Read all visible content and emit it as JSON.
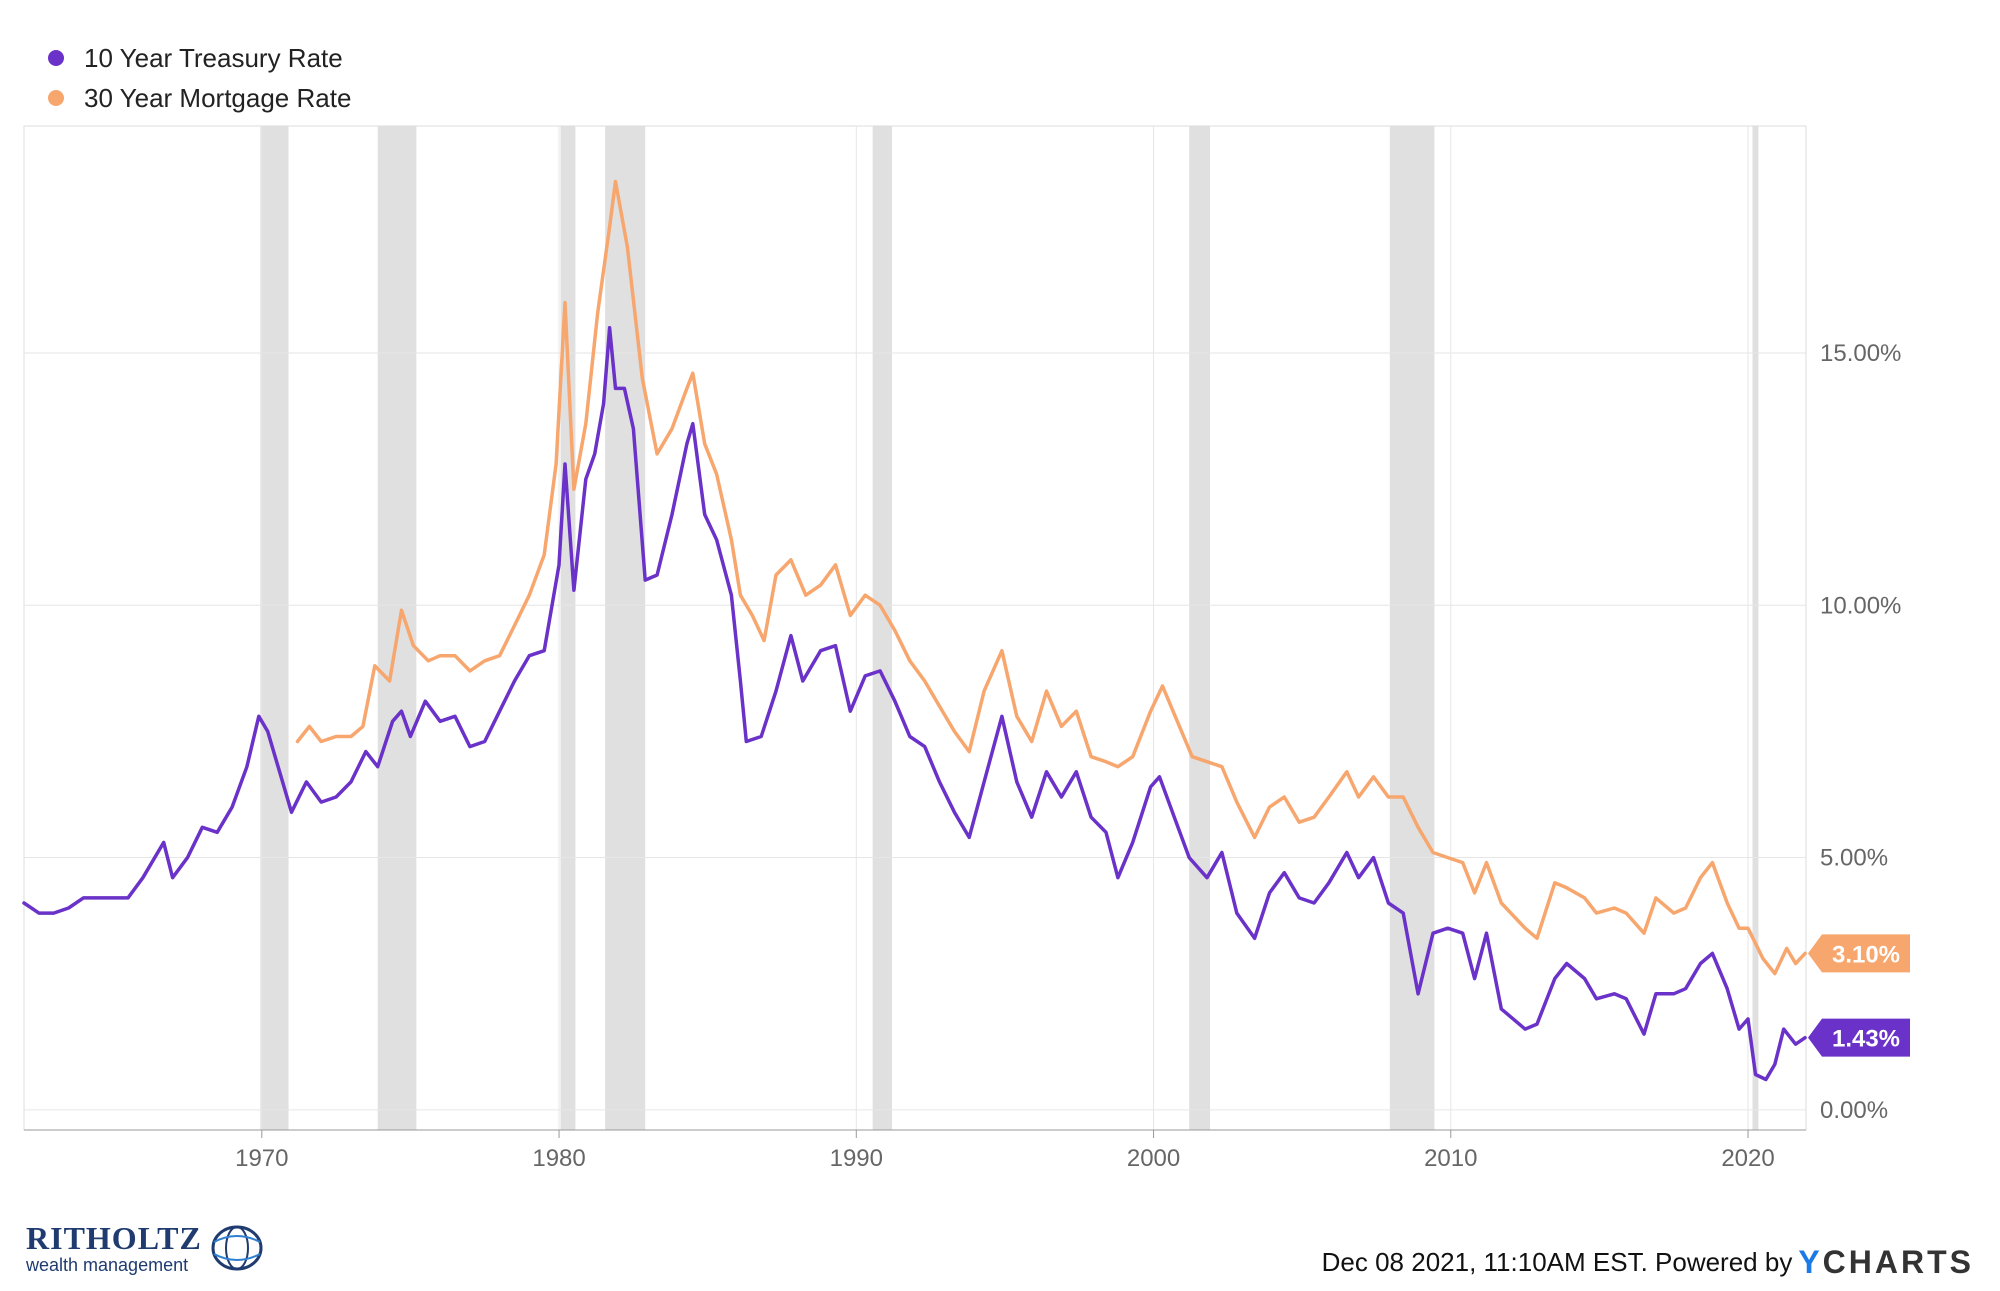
{
  "legend": [
    {
      "name": "10 Year Treasury Rate",
      "color": "#6a32c8"
    },
    {
      "name": "30 Year Mortgage Rate",
      "color": "#f7a66e"
    }
  ],
  "chart_data": {
    "type": "line",
    "title": "",
    "xlabel": "",
    "ylabel": "",
    "xlim": [
      1962.0,
      2021.95
    ],
    "ylim": [
      -0.4,
      19.5
    ],
    "x_ticks": [
      1970,
      1980,
      1990,
      2000,
      2010,
      2020
    ],
    "y_ticks": [
      0,
      5,
      10,
      15
    ],
    "y_tick_labels": [
      "0.00%",
      "5.00%",
      "10.00%",
      "15.00%"
    ],
    "y_axis_side": "right",
    "grid": true,
    "legend_position": "top-left",
    "recession_shading_color": "#e0e0e0",
    "recessions": [
      [
        1969.95,
        1970.9
      ],
      [
        1973.9,
        1975.2
      ],
      [
        1980.05,
        1980.55
      ],
      [
        1981.55,
        1982.9
      ],
      [
        1990.55,
        1991.2
      ],
      [
        2001.2,
        2001.9
      ],
      [
        2007.95,
        2009.45
      ],
      [
        2020.15,
        2020.35
      ]
    ],
    "series": [
      {
        "name": "10 Year Treasury Rate",
        "color": "#6a32c8",
        "end_label": "1.43%",
        "points": [
          [
            1962.0,
            4.1
          ],
          [
            1962.5,
            3.9
          ],
          [
            1963.0,
            3.9
          ],
          [
            1963.5,
            4.0
          ],
          [
            1964.0,
            4.2
          ],
          [
            1964.5,
            4.2
          ],
          [
            1965.0,
            4.2
          ],
          [
            1965.5,
            4.2
          ],
          [
            1966.0,
            4.6
          ],
          [
            1966.7,
            5.3
          ],
          [
            1967.0,
            4.6
          ],
          [
            1967.5,
            5.0
          ],
          [
            1968.0,
            5.6
          ],
          [
            1968.5,
            5.5
          ],
          [
            1969.0,
            6.0
          ],
          [
            1969.5,
            6.8
          ],
          [
            1969.9,
            7.8
          ],
          [
            1970.2,
            7.5
          ],
          [
            1970.6,
            6.7
          ],
          [
            1971.0,
            5.9
          ],
          [
            1971.5,
            6.5
          ],
          [
            1972.0,
            6.1
          ],
          [
            1972.5,
            6.2
          ],
          [
            1973.0,
            6.5
          ],
          [
            1973.5,
            7.1
          ],
          [
            1973.9,
            6.8
          ],
          [
            1974.4,
            7.7
          ],
          [
            1974.7,
            7.9
          ],
          [
            1975.0,
            7.4
          ],
          [
            1975.5,
            8.1
          ],
          [
            1976.0,
            7.7
          ],
          [
            1976.5,
            7.8
          ],
          [
            1977.0,
            7.2
          ],
          [
            1977.5,
            7.3
          ],
          [
            1978.0,
            7.9
          ],
          [
            1978.5,
            8.5
          ],
          [
            1979.0,
            9.0
          ],
          [
            1979.5,
            9.1
          ],
          [
            1980.0,
            10.8
          ],
          [
            1980.2,
            12.8
          ],
          [
            1980.5,
            10.3
          ],
          [
            1980.9,
            12.5
          ],
          [
            1981.2,
            13.0
          ],
          [
            1981.5,
            14.0
          ],
          [
            1981.7,
            15.5
          ],
          [
            1981.9,
            14.3
          ],
          [
            1982.2,
            14.3
          ],
          [
            1982.5,
            13.5
          ],
          [
            1982.9,
            10.5
          ],
          [
            1983.3,
            10.6
          ],
          [
            1983.8,
            11.8
          ],
          [
            1984.3,
            13.2
          ],
          [
            1984.5,
            13.6
          ],
          [
            1984.9,
            11.8
          ],
          [
            1985.3,
            11.3
          ],
          [
            1985.8,
            10.2
          ],
          [
            1986.1,
            8.5
          ],
          [
            1986.3,
            7.3
          ],
          [
            1986.8,
            7.4
          ],
          [
            1987.3,
            8.3
          ],
          [
            1987.8,
            9.4
          ],
          [
            1988.2,
            8.5
          ],
          [
            1988.8,
            9.1
          ],
          [
            1989.3,
            9.2
          ],
          [
            1989.8,
            7.9
          ],
          [
            1990.3,
            8.6
          ],
          [
            1990.8,
            8.7
          ],
          [
            1991.3,
            8.1
          ],
          [
            1991.8,
            7.4
          ],
          [
            1992.3,
            7.2
          ],
          [
            1992.8,
            6.5
          ],
          [
            1993.3,
            5.9
          ],
          [
            1993.8,
            5.4
          ],
          [
            1994.3,
            6.5
          ],
          [
            1994.9,
            7.8
          ],
          [
            1995.4,
            6.5
          ],
          [
            1995.9,
            5.8
          ],
          [
            1996.4,
            6.7
          ],
          [
            1996.9,
            6.2
          ],
          [
            1997.4,
            6.7
          ],
          [
            1997.9,
            5.8
          ],
          [
            1998.4,
            5.5
          ],
          [
            1998.8,
            4.6
          ],
          [
            1999.3,
            5.3
          ],
          [
            1999.9,
            6.4
          ],
          [
            2000.2,
            6.6
          ],
          [
            2000.7,
            5.8
          ],
          [
            2001.2,
            5.0
          ],
          [
            2001.8,
            4.6
          ],
          [
            2002.3,
            5.1
          ],
          [
            2002.8,
            3.9
          ],
          [
            2003.4,
            3.4
          ],
          [
            2003.9,
            4.3
          ],
          [
            2004.4,
            4.7
          ],
          [
            2004.9,
            4.2
          ],
          [
            2005.4,
            4.1
          ],
          [
            2005.9,
            4.5
          ],
          [
            2006.5,
            5.1
          ],
          [
            2006.9,
            4.6
          ],
          [
            2007.4,
            5.0
          ],
          [
            2007.9,
            4.1
          ],
          [
            2008.4,
            3.9
          ],
          [
            2008.9,
            2.3
          ],
          [
            2009.4,
            3.5
          ],
          [
            2009.9,
            3.6
          ],
          [
            2010.4,
            3.5
          ],
          [
            2010.8,
            2.6
          ],
          [
            2011.2,
            3.5
          ],
          [
            2011.7,
            2.0
          ],
          [
            2012.5,
            1.6
          ],
          [
            2012.9,
            1.7
          ],
          [
            2013.5,
            2.6
          ],
          [
            2013.9,
            2.9
          ],
          [
            2014.5,
            2.6
          ],
          [
            2014.9,
            2.2
          ],
          [
            2015.5,
            2.3
          ],
          [
            2015.9,
            2.2
          ],
          [
            2016.5,
            1.5
          ],
          [
            2016.9,
            2.3
          ],
          [
            2017.5,
            2.3
          ],
          [
            2017.9,
            2.4
          ],
          [
            2018.4,
            2.9
          ],
          [
            2018.8,
            3.1
          ],
          [
            2019.3,
            2.4
          ],
          [
            2019.7,
            1.6
          ],
          [
            2020.0,
            1.8
          ],
          [
            2020.25,
            0.7
          ],
          [
            2020.6,
            0.6
          ],
          [
            2020.9,
            0.9
          ],
          [
            2021.2,
            1.6
          ],
          [
            2021.6,
            1.3
          ],
          [
            2021.92,
            1.43
          ]
        ]
      },
      {
        "name": "30 Year Mortgage Rate",
        "color": "#f7a66e",
        "end_label": "3.10%",
        "points": [
          [
            1971.2,
            7.3
          ],
          [
            1971.6,
            7.6
          ],
          [
            1972.0,
            7.3
          ],
          [
            1972.5,
            7.4
          ],
          [
            1973.0,
            7.4
          ],
          [
            1973.4,
            7.6
          ],
          [
            1973.8,
            8.8
          ],
          [
            1974.3,
            8.5
          ],
          [
            1974.7,
            9.9
          ],
          [
            1975.1,
            9.2
          ],
          [
            1975.6,
            8.9
          ],
          [
            1976.0,
            9.0
          ],
          [
            1976.5,
            9.0
          ],
          [
            1977.0,
            8.7
          ],
          [
            1977.5,
            8.9
          ],
          [
            1978.0,
            9.0
          ],
          [
            1978.5,
            9.6
          ],
          [
            1979.0,
            10.2
          ],
          [
            1979.5,
            11.0
          ],
          [
            1979.9,
            12.8
          ],
          [
            1980.2,
            16.0
          ],
          [
            1980.5,
            12.3
          ],
          [
            1980.9,
            13.6
          ],
          [
            1981.3,
            15.8
          ],
          [
            1981.7,
            17.5
          ],
          [
            1981.9,
            18.4
          ],
          [
            1982.3,
            17.1
          ],
          [
            1982.8,
            14.5
          ],
          [
            1983.3,
            13.0
          ],
          [
            1983.8,
            13.5
          ],
          [
            1984.3,
            14.3
          ],
          [
            1984.5,
            14.6
          ],
          [
            1984.9,
            13.2
          ],
          [
            1985.3,
            12.6
          ],
          [
            1985.8,
            11.3
          ],
          [
            1986.1,
            10.2
          ],
          [
            1986.5,
            9.8
          ],
          [
            1986.9,
            9.3
          ],
          [
            1987.3,
            10.6
          ],
          [
            1987.8,
            10.9
          ],
          [
            1988.3,
            10.2
          ],
          [
            1988.8,
            10.4
          ],
          [
            1989.3,
            10.8
          ],
          [
            1989.8,
            9.8
          ],
          [
            1990.3,
            10.2
          ],
          [
            1990.8,
            10.0
          ],
          [
            1991.3,
            9.5
          ],
          [
            1991.8,
            8.9
          ],
          [
            1992.3,
            8.5
          ],
          [
            1992.8,
            8.0
          ],
          [
            1993.3,
            7.5
          ],
          [
            1993.8,
            7.1
          ],
          [
            1994.3,
            8.3
          ],
          [
            1994.9,
            9.1
          ],
          [
            1995.4,
            7.8
          ],
          [
            1995.9,
            7.3
          ],
          [
            1996.4,
            8.3
          ],
          [
            1996.9,
            7.6
          ],
          [
            1997.4,
            7.9
          ],
          [
            1997.9,
            7.0
          ],
          [
            1998.4,
            6.9
          ],
          [
            1998.8,
            6.8
          ],
          [
            1999.3,
            7.0
          ],
          [
            1999.9,
            7.9
          ],
          [
            2000.3,
            8.4
          ],
          [
            2000.8,
            7.7
          ],
          [
            2001.3,
            7.0
          ],
          [
            2001.8,
            6.9
          ],
          [
            2002.3,
            6.8
          ],
          [
            2002.8,
            6.1
          ],
          [
            2003.4,
            5.4
          ],
          [
            2003.9,
            6.0
          ],
          [
            2004.4,
            6.2
          ],
          [
            2004.9,
            5.7
          ],
          [
            2005.4,
            5.8
          ],
          [
            2005.9,
            6.2
          ],
          [
            2006.5,
            6.7
          ],
          [
            2006.9,
            6.2
          ],
          [
            2007.4,
            6.6
          ],
          [
            2007.9,
            6.2
          ],
          [
            2008.4,
            6.2
          ],
          [
            2008.9,
            5.6
          ],
          [
            2009.4,
            5.1
          ],
          [
            2009.9,
            5.0
          ],
          [
            2010.4,
            4.9
          ],
          [
            2010.8,
            4.3
          ],
          [
            2011.2,
            4.9
          ],
          [
            2011.7,
            4.1
          ],
          [
            2012.5,
            3.6
          ],
          [
            2012.9,
            3.4
          ],
          [
            2013.5,
            4.5
          ],
          [
            2013.9,
            4.4
          ],
          [
            2014.5,
            4.2
          ],
          [
            2014.9,
            3.9
          ],
          [
            2015.5,
            4.0
          ],
          [
            2015.9,
            3.9
          ],
          [
            2016.5,
            3.5
          ],
          [
            2016.9,
            4.2
          ],
          [
            2017.5,
            3.9
          ],
          [
            2017.9,
            4.0
          ],
          [
            2018.4,
            4.6
          ],
          [
            2018.8,
            4.9
          ],
          [
            2019.3,
            4.1
          ],
          [
            2019.7,
            3.6
          ],
          [
            2020.0,
            3.6
          ],
          [
            2020.5,
            3.0
          ],
          [
            2020.9,
            2.7
          ],
          [
            2021.3,
            3.2
          ],
          [
            2021.6,
            2.9
          ],
          [
            2021.92,
            3.1
          ]
        ]
      }
    ]
  },
  "logo": {
    "name": "RITHOLTZ",
    "sub": "wealth management"
  },
  "footer": {
    "timestamp": "Dec 08 2021, 11:10AM EST. Powered by",
    "brand_y": "Y",
    "brand_rest": "CHARTS"
  }
}
